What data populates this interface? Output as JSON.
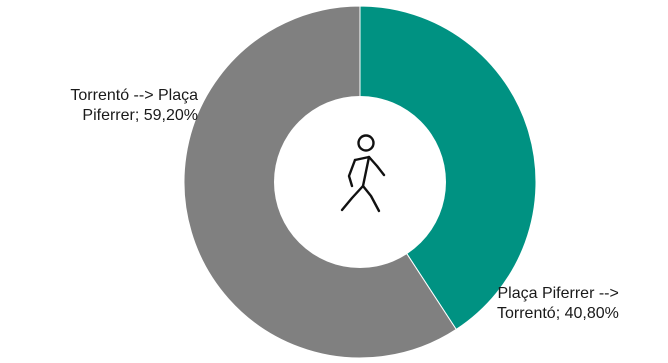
{
  "chart_data": {
    "type": "pie",
    "variant": "donut",
    "start_angle": "top, clockwise",
    "slices": [
      {
        "label": "Plaça Piferrer --> Torrentó",
        "value": 40.8,
        "display": "40,80%",
        "color": "#009282"
      },
      {
        "label": "Torrentó --> Plaça Piferrer",
        "value": 59.2,
        "display": "59,20%",
        "color": "#808080"
      }
    ],
    "data_labels": [
      {
        "line1": "Torrentó --> Plaça",
        "line2": "Piferrer; 59,20%"
      },
      {
        "line1": "Plaça Piferrer -->",
        "line2": "Torrentó; 40,80%"
      }
    ],
    "center_icon": "pedestrian-walking-icon",
    "legend": "none"
  }
}
